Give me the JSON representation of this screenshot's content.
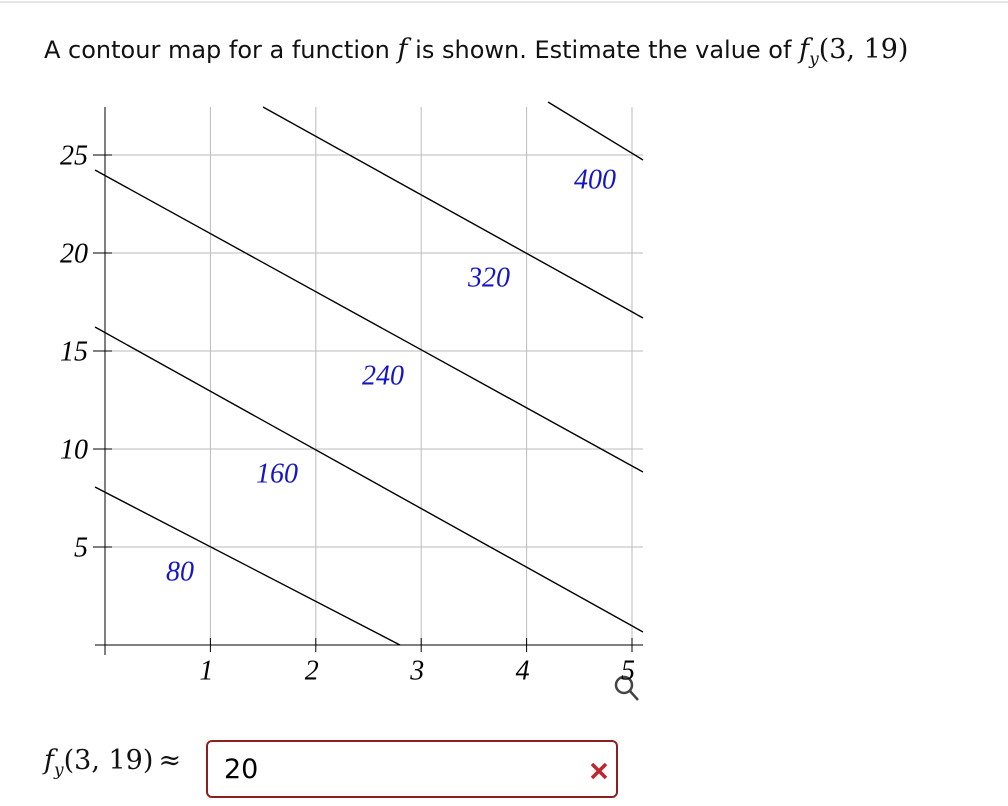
{
  "question": {
    "text": "A contour map for a function",
    "function": "f",
    "text_after": "is shown. Estimate the value of",
    "expression": {
      "function": "f",
      "subscript": "y",
      "arguments": "(3, 19)"
    }
  },
  "plot": {
    "xticks": [
      1,
      2,
      3,
      4,
      5
    ],
    "yticks": [
      5,
      10,
      15,
      20,
      25
    ],
    "contour_labels": [
      80,
      160,
      240,
      320,
      400
    ]
  },
  "answer": {
    "expression": {
      "function": "f",
      "subscript": "y",
      "arguments": "(3, 19)"
    },
    "approx": "≈",
    "input": "20"
  }
}
